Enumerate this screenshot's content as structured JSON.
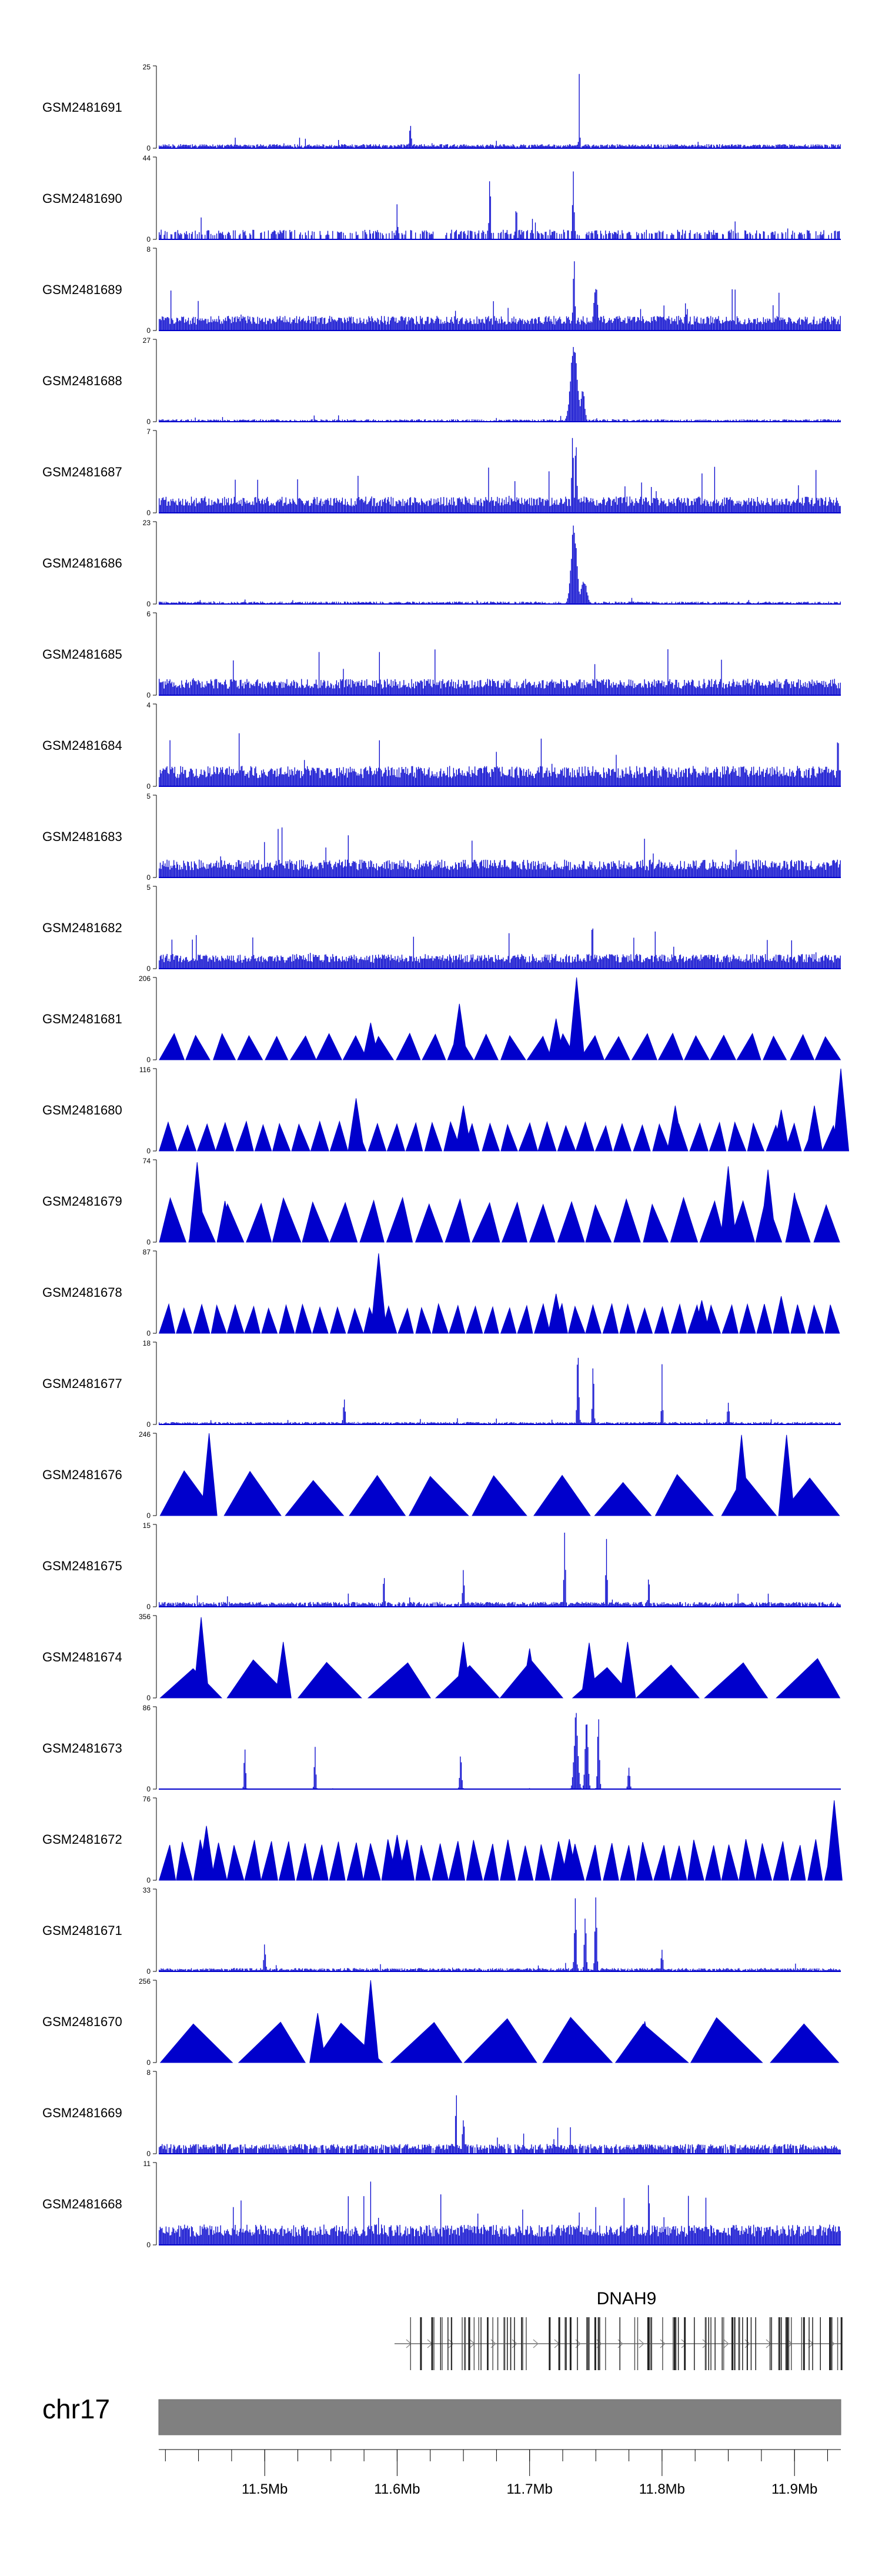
{
  "chart_data": {
    "type": "genome-browser-tracks",
    "chromosome": "chr17",
    "x_range_mb": [
      11.42,
      11.935
    ],
    "track_color": "#0000CC",
    "tracks": [
      {
        "name": "GSM2481691",
        "ymax": 25,
        "style": "bars",
        "seed": 101,
        "base": 0.05,
        "density": 0.9,
        "peaks": [
          [
            11.7375,
            1.0,
            0.0005
          ],
          [
            11.61,
            0.3,
            0.001
          ]
        ]
      },
      {
        "name": "GSM2481690",
        "ymax": 44,
        "style": "bars",
        "seed": 102,
        "base": 0.12,
        "density": 0.55,
        "peaks": [
          [
            11.67,
            0.92,
            0.0008
          ],
          [
            11.733,
            1.0,
            0.0008
          ],
          [
            11.6,
            0.5,
            0.0006
          ],
          [
            11.69,
            0.55,
            0.0006
          ]
        ]
      },
      {
        "name": "GSM2481689",
        "ymax": 8,
        "style": "bars",
        "seed": 103,
        "base": 0.18,
        "density": 1.0,
        "peaks": [
          [
            11.7335,
            0.95,
            0.001
          ],
          [
            11.75,
            0.6,
            0.002
          ]
        ]
      },
      {
        "name": "GSM2481688",
        "ymax": 27,
        "style": "bars",
        "seed": 104,
        "base": 0.03,
        "density": 0.7,
        "peaks": [
          [
            11.7335,
            1.0,
            0.0035
          ],
          [
            11.74,
            0.45,
            0.002
          ]
        ]
      },
      {
        "name": "GSM2481687",
        "ymax": 7,
        "style": "bars",
        "seed": 105,
        "base": 0.2,
        "density": 1.0,
        "peaks": [
          [
            11.7325,
            1.0,
            0.001
          ],
          [
            11.735,
            0.9,
            0.001
          ]
        ]
      },
      {
        "name": "GSM2481686",
        "ymax": 23,
        "style": "bars",
        "seed": 106,
        "base": 0.03,
        "density": 0.7,
        "peaks": [
          [
            11.7335,
            1.0,
            0.003
          ],
          [
            11.741,
            0.3,
            0.003
          ]
        ]
      },
      {
        "name": "GSM2481685",
        "ymax": 6,
        "style": "bars",
        "seed": 107,
        "base": 0.2,
        "density": 1.0,
        "peaks": []
      },
      {
        "name": "GSM2481684",
        "ymax": 4,
        "style": "bars",
        "seed": 108,
        "base": 0.25,
        "density": 1.0,
        "peaks": []
      },
      {
        "name": "GSM2481683",
        "ymax": 5,
        "style": "bars",
        "seed": 109,
        "base": 0.22,
        "density": 1.0,
        "peaks": []
      },
      {
        "name": "GSM2481682",
        "ymax": 5,
        "style": "bars",
        "seed": 110,
        "base": 0.18,
        "density": 1.0,
        "peaks": []
      },
      {
        "name": "GSM2481681",
        "ymax": 206,
        "style": "triangles",
        "seed": 111,
        "ntri": 26,
        "hmin": 0.28,
        "hmax": 0.33,
        "spikes": [
          [
            11.7355,
            1.0
          ],
          [
            11.647,
            0.68
          ],
          [
            11.58,
            0.45
          ],
          [
            11.72,
            0.5
          ]
        ]
      },
      {
        "name": "GSM2481680",
        "ymax": 116,
        "style": "triangles",
        "seed": 112,
        "ntri": 36,
        "hmin": 0.3,
        "hmax": 0.36,
        "spikes": [
          [
            11.935,
            1.0
          ],
          [
            11.915,
            0.55
          ],
          [
            11.569,
            0.64
          ],
          [
            11.65,
            0.55
          ],
          [
            11.81,
            0.55
          ],
          [
            11.89,
            0.5
          ]
        ]
      },
      {
        "name": "GSM2481679",
        "ymax": 74,
        "style": "triangles",
        "seed": 113,
        "ntri": 24,
        "hmin": 0.45,
        "hmax": 0.55,
        "spikes": [
          [
            11.449,
            0.97
          ],
          [
            11.85,
            0.92
          ],
          [
            11.88,
            0.88
          ],
          [
            11.47,
            0.5
          ],
          [
            11.9,
            0.6
          ]
        ]
      },
      {
        "name": "GSM2481678",
        "ymax": 87,
        "style": "triangles",
        "seed": 114,
        "ntri": 40,
        "hmin": 0.3,
        "hmax": 0.36,
        "spikes": [
          [
            11.586,
            0.97
          ],
          [
            11.72,
            0.48
          ],
          [
            11.83,
            0.4
          ],
          [
            11.89,
            0.45
          ]
        ]
      },
      {
        "name": "GSM2481677",
        "ymax": 18,
        "style": "bars",
        "seed": 115,
        "base": 0.03,
        "density": 0.9,
        "peaks": [
          [
            11.7365,
            1.0,
            0.001
          ],
          [
            11.748,
            0.88,
            0.0008
          ],
          [
            11.8,
            0.9,
            0.0006
          ],
          [
            11.56,
            0.35,
            0.001
          ],
          [
            11.85,
            0.3,
            0.001
          ]
        ]
      },
      {
        "name": "GSM2481676",
        "ymax": 246,
        "style": "triangles",
        "seed": 116,
        "ntri": 11,
        "hmin": 0.4,
        "hmax": 0.55,
        "spikes": [
          [
            11.458,
            1.0
          ],
          [
            11.86,
            0.98
          ],
          [
            11.894,
            0.98
          ],
          [
            11.44,
            0.5
          ]
        ]
      },
      {
        "name": "GSM2481675",
        "ymax": 15,
        "style": "bars",
        "seed": 117,
        "base": 0.06,
        "density": 0.9,
        "peaks": [
          [
            11.7265,
            0.97
          ],
          [
            11.758,
            0.95
          ],
          [
            11.65,
            0.5
          ],
          [
            11.59,
            0.45
          ],
          [
            11.79,
            0.45
          ]
        ]
      },
      {
        "name": "GSM2481674",
        "ymax": 356,
        "style": "triangles",
        "seed": 118,
        "ntri": 10,
        "hmin": 0.35,
        "hmax": 0.5,
        "spikes": [
          [
            11.452,
            0.98
          ],
          [
            11.514,
            0.68
          ],
          [
            11.65,
            0.68
          ],
          [
            11.7,
            0.6
          ],
          [
            11.745,
            0.67
          ],
          [
            11.774,
            0.68
          ]
        ]
      },
      {
        "name": "GSM2481673",
        "ymax": 86,
        "style": "bars",
        "seed": 119,
        "base": 0.004,
        "density": 0.6,
        "peaks": [
          [
            11.735,
            0.95,
            0.002
          ],
          [
            11.743,
            0.9,
            0.0015
          ],
          [
            11.752,
            0.98,
            0.001
          ],
          [
            11.485,
            0.6,
            0.0008
          ],
          [
            11.538,
            0.55,
            0.0008
          ],
          [
            11.648,
            0.48,
            0.001
          ],
          [
            11.775,
            0.3,
            0.001
          ]
        ]
      },
      {
        "name": "GSM2481672",
        "ymax": 76,
        "style": "triangles",
        "seed": 120,
        "ntri": 40,
        "hmin": 0.42,
        "hmax": 0.5,
        "spikes": [
          [
            11.93,
            0.97
          ],
          [
            11.456,
            0.66
          ],
          [
            11.6,
            0.55
          ],
          [
            11.73,
            0.5
          ]
        ]
      },
      {
        "name": "GSM2481671",
        "ymax": 33,
        "style": "bars",
        "seed": 121,
        "base": 0.04,
        "density": 0.9,
        "peaks": [
          [
            11.7345,
            0.96,
            0.001
          ],
          [
            11.742,
            0.75,
            0.001
          ],
          [
            11.75,
            0.97,
            0.001
          ],
          [
            11.5,
            0.35,
            0.001
          ],
          [
            11.8,
            0.3,
            0.001
          ]
        ]
      },
      {
        "name": "GSM2481670",
        "ymax": 256,
        "style": "triangles",
        "seed": 122,
        "ntri": 9,
        "hmin": 0.45,
        "hmax": 0.55,
        "spikes": [
          [
            11.58,
            1.0
          ],
          [
            11.54,
            0.6
          ],
          [
            11.787,
            0.5
          ]
        ]
      },
      {
        "name": "GSM2481669",
        "ymax": 8,
        "style": "bars",
        "seed": 123,
        "base": 0.12,
        "density": 0.9,
        "peaks": [
          [
            11.6445,
            0.9,
            0.0006
          ],
          [
            11.65,
            0.5,
            0.001
          ]
        ]
      },
      {
        "name": "GSM2481668",
        "ymax": 11,
        "style": "bars",
        "seed": 124,
        "base": 0.25,
        "density": 1.0,
        "peaks": [
          [
            11.79,
            0.95,
            0.0006
          ],
          [
            11.58,
            0.8,
            0.0006
          ],
          [
            11.82,
            0.7,
            0.0006
          ]
        ]
      }
    ],
    "gene": {
      "name": "DNAH9",
      "start_mb": 11.598,
      "end_mb": 11.935
    },
    "axis": {
      "ticks": [
        11.5,
        11.6,
        11.7,
        11.8,
        11.9
      ],
      "tick_labels": [
        "11.5Mb",
        "11.6Mb",
        "11.7Mb",
        "11.8Mb",
        "11.9Mb"
      ],
      "minor_step_mb": 0.025
    }
  }
}
